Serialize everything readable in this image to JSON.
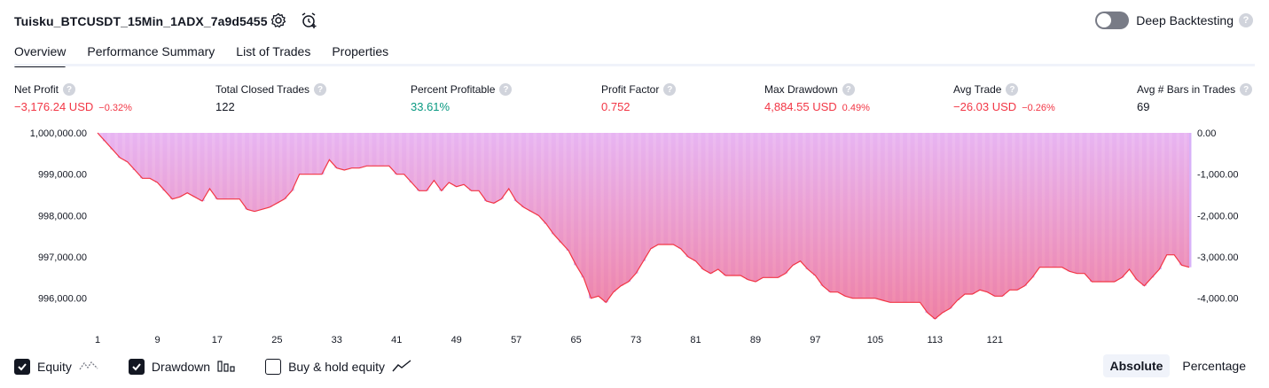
{
  "header": {
    "strategy_name": "Tuisku_BTCUSDT_15Min_1ADX_7a9d5455",
    "deep_backtesting_label": "Deep Backtesting",
    "deep_backtesting_on": false
  },
  "tabs": [
    {
      "label": "Overview",
      "active": true
    },
    {
      "label": "Performance Summary",
      "active": false
    },
    {
      "label": "List of Trades",
      "active": false
    },
    {
      "label": "Properties",
      "active": false
    }
  ],
  "metrics": [
    {
      "label": "Net Profit",
      "value": "−3,176.24 USD",
      "pct": "−0.32%",
      "tone": "neg"
    },
    {
      "label": "Total Closed Trades",
      "value": "122",
      "pct": "",
      "tone": "neu"
    },
    {
      "label": "Percent Profitable",
      "value": "33.61%",
      "pct": "",
      "tone": "pos"
    },
    {
      "label": "Profit Factor",
      "value": "0.752",
      "pct": "",
      "tone": "neg"
    },
    {
      "label": "Max Drawdown",
      "value": "4,884.55 USD",
      "pct": "0.49%",
      "tone": "neg"
    },
    {
      "label": "Avg Trade",
      "value": "−26.03 USD",
      "pct": "−0.26%",
      "tone": "neg"
    },
    {
      "label": "Avg # Bars in Trades",
      "value": "69",
      "pct": "",
      "tone": "neu"
    }
  ],
  "chart_data": {
    "type": "area",
    "equity_ylim": [
      995500,
      1000000
    ],
    "drawdown_ylim": [
      -4500,
      0
    ],
    "left_ticks": [
      "1,000,000.00",
      "999,000.00",
      "998,000.00",
      "997,000.00",
      "996,000.00"
    ],
    "left_tick_values": [
      1000000,
      999000,
      998000,
      997000,
      996000
    ],
    "right_ticks": [
      "0.00",
      "-1,000.00",
      "-2,000.00",
      "-3,000.00",
      "-4,000.00"
    ],
    "right_tick_values": [
      0,
      -1000,
      -2000,
      -3000,
      -4000
    ],
    "x_tick_labels": [
      "1",
      "9",
      "17",
      "25",
      "33",
      "41",
      "49",
      "57",
      "65",
      "73",
      "81",
      "89",
      "97",
      "105",
      "113",
      "121"
    ],
    "trades": 122,
    "equity": [
      1000000,
      999800,
      999600,
      999400,
      999300,
      999100,
      998900,
      998900,
      998800,
      998600,
      998400,
      998450,
      998550,
      998450,
      998350,
      998650,
      998400,
      998400,
      998400,
      998400,
      998150,
      998100,
      998150,
      998200,
      998300,
      998400,
      998600,
      999000,
      999000,
      999000,
      999000,
      999350,
      999150,
      999100,
      999150,
      999150,
      999200,
      999200,
      999200,
      999200,
      999000,
      999000,
      998800,
      998600,
      998600,
      998850,
      998600,
      998800,
      998700,
      998750,
      998600,
      998600,
      998350,
      998300,
      998400,
      998650,
      998350,
      998200,
      998100,
      998000,
      997800,
      997550,
      997350,
      997150,
      996800,
      996500,
      996000,
      996050,
      995900,
      996150,
      996300,
      996400,
      996600,
      996900,
      997200,
      997300,
      997300,
      997300,
      997200,
      997000,
      996900,
      996700,
      996600,
      996700,
      996550,
      996550,
      996550,
      996450,
      996400,
      996500,
      996500,
      996500,
      996600,
      996800,
      996900,
      996700,
      996550,
      996300,
      996150,
      996150,
      996050,
      996000,
      996000,
      996000,
      996000,
      995950,
      995900,
      995900,
      995900,
      995900,
      995900,
      995650,
      995500,
      995650,
      995750,
      995950,
      996100,
      996100,
      996200,
      996150,
      996050,
      996050,
      996200,
      996200,
      996300,
      996500,
      996750,
      996750,
      996750,
      996750,
      996650,
      996600,
      996600,
      996400,
      996400,
      996400,
      996400,
      996500,
      996700,
      996450,
      996300,
      996500,
      996700,
      997050,
      997050,
      996800,
      996750
    ],
    "drawdown": [
      0,
      -200,
      -400,
      -600,
      -700,
      -900,
      -1100,
      -1100,
      -1200,
      -1400,
      -1600,
      -1550,
      -1450,
      -1550,
      -1650,
      -1350,
      -1600,
      -1600,
      -1600,
      -1600,
      -1850,
      -1900,
      -1850,
      -1800,
      -1700,
      -1600,
      -1400,
      -1000,
      -1000,
      -1000,
      -1000,
      -650,
      -850,
      -900,
      -850,
      -850,
      -800,
      -800,
      -800,
      -800,
      -1000,
      -1000,
      -1200,
      -1400,
      -1400,
      -1150,
      -1400,
      -1200,
      -1300,
      -1250,
      -1400,
      -1400,
      -1650,
      -1700,
      -1600,
      -1350,
      -1650,
      -1800,
      -1900,
      -2000,
      -2200,
      -2450,
      -2650,
      -2850,
      -3200,
      -3500,
      -4000,
      -3950,
      -4100,
      -3850,
      -3700,
      -3600,
      -3400,
      -3100,
      -2800,
      -2700,
      -2700,
      -2700,
      -2800,
      -3000,
      -3100,
      -3300,
      -3400,
      -3300,
      -3450,
      -3450,
      -3450,
      -3550,
      -3600,
      -3500,
      -3500,
      -3500,
      -3400,
      -3200,
      -3100,
      -3300,
      -3450,
      -3700,
      -3850,
      -3850,
      -3950,
      -4000,
      -4000,
      -4000,
      -4000,
      -4050,
      -4100,
      -4100,
      -4100,
      -4100,
      -4100,
      -4350,
      -4500,
      -4350,
      -4250,
      -4050,
      -3900,
      -3900,
      -3800,
      -3850,
      -3950,
      -3950,
      -3800,
      -3800,
      -3700,
      -3500,
      -3250,
      -3250,
      -3250,
      -3250,
      -3350,
      -3400,
      -3400,
      -3600,
      -3600,
      -3600,
      -3600,
      -3500,
      -3300,
      -3550,
      -3700,
      -3500,
      -3300,
      -2950,
      -2950,
      -3200,
      -3250
    ],
    "series": [
      {
        "name": "Equity",
        "color": "#f23645"
      },
      {
        "name": "Drawdown",
        "color": "#d1a3f7"
      }
    ]
  },
  "footer": {
    "equity_label": "Equity",
    "equity_checked": true,
    "drawdown_label": "Drawdown",
    "drawdown_checked": true,
    "buyhold_label": "Buy & hold equity",
    "buyhold_checked": false,
    "absolute_label": "Absolute",
    "percentage_label": "Percentage",
    "mode": "absolute"
  },
  "icons": {
    "settings": "gear-icon",
    "alert": "alarm-clock-plus-icon",
    "help": "question-icon",
    "equity_legend": "equity-line-icon",
    "drawdown_legend": "drawdown-bars-icon",
    "buyhold_legend": "trend-line-icon"
  },
  "colors": {
    "negative": "#f23645",
    "positive": "#089981",
    "equity_line": "#f23645",
    "drawdown_bar": "#d1a3f7"
  }
}
